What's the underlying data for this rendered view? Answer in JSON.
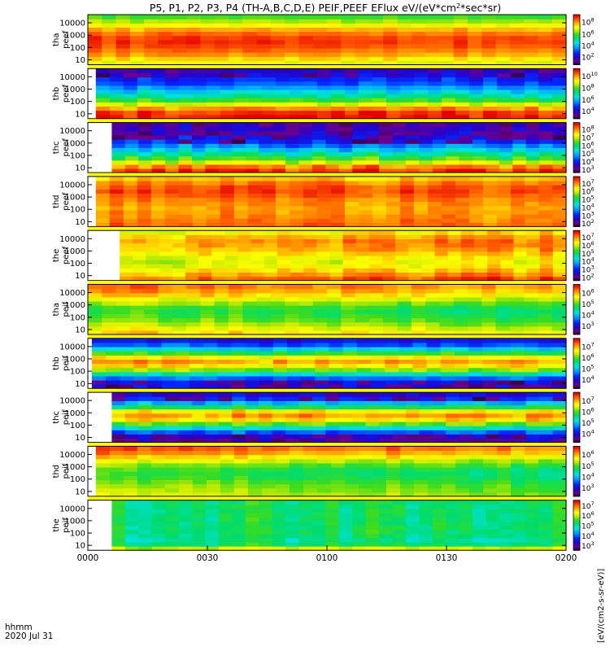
{
  "chart_data": {
    "type": "heatmap",
    "title": "P5, P1, P2, P3, P4 (TH-A,B,C,D,E) PEIF,PEEF EFlux eV/(eV*cm^2*sec*sr)",
    "title_parts": {
      "prefix": "P5, P1, P2, P3, P4 (TH-A,B,C,D,E) PEIF,PEEF EFlux eV/(eV",
      "cm": "cm",
      "sup": "2",
      "sec": "sec",
      "sr": "sr)"
    },
    "xlabel": "hhmm",
    "date_label": "2020 Jul 31",
    "x_ticks": [
      "0000",
      "0030",
      "0100",
      "0130",
      "0200"
    ],
    "x_range_minutes": [
      0,
      120
    ],
    "y_ticks": [
      "10",
      "100",
      "1000",
      "10000"
    ],
    "y_scale": "log",
    "colorbar_title": "[eV/(cm2-s-sr-eV)]",
    "panels": [
      {
        "label": "tha",
        "sublabel": "peef",
        "data_start_min": 0,
        "cbar_exps": [
          "2",
          "4",
          "6",
          "8"
        ],
        "cbar_exp_positions": [
          0.16,
          0.39,
          0.62,
          0.86
        ],
        "energy_profile": [
          0.74,
          0.8,
          0.86,
          0.9,
          0.93,
          0.95,
          0.94,
          0.9,
          0.84,
          0.76,
          0.68,
          0.61
        ],
        "time_trend": 0.0,
        "noise": 0.03,
        "dark_bands": [],
        "ydir": 1
      },
      {
        "label": "thb",
        "sublabel": "peef",
        "data_start_min": 2,
        "cbar_exps": [
          "4",
          "6",
          "8",
          "10"
        ],
        "cbar_exp_positions": [
          0.16,
          0.39,
          0.62,
          0.86
        ],
        "energy_profile": [
          0.97,
          0.95,
          0.86,
          0.72,
          0.6,
          0.5,
          0.42,
          0.34,
          0.26,
          0.22,
          0.16,
          0.13
        ],
        "time_trend": 0.0,
        "noise": 0.05,
        "dark_bands": [
          [
            0.85,
            0.94
          ]
        ],
        "ydir": 1
      },
      {
        "label": "thc",
        "sublabel": "peef",
        "data_start_min": 6,
        "cbar_exps": [
          "3",
          "4",
          "5",
          "6",
          "7",
          "8"
        ],
        "cbar_exp_positions": [
          0.07,
          0.23,
          0.39,
          0.55,
          0.71,
          0.87
        ],
        "energy_profile": [
          0.95,
          0.88,
          0.72,
          0.6,
          0.5,
          0.4,
          0.32,
          0.24,
          0.18,
          0.13,
          0.12,
          0.1
        ],
        "time_trend": 0.0,
        "noise": 0.06,
        "dark_bands": [
          [
            0.6,
            0.75
          ],
          [
            0.8,
            0.88
          ]
        ],
        "ydir": 1
      },
      {
        "label": "thd",
        "sublabel": "peef",
        "data_start_min": 2,
        "cbar_exps": [
          "2",
          "3",
          "4",
          "5",
          "6",
          "7"
        ],
        "cbar_exp_positions": [
          0.07,
          0.23,
          0.39,
          0.55,
          0.71,
          0.87
        ],
        "energy_profile": [
          0.9,
          0.88,
          0.87,
          0.86,
          0.85,
          0.86,
          0.88,
          0.91,
          0.93,
          0.92,
          0.88,
          0.82
        ],
        "time_trend": 0.0,
        "noise": 0.04,
        "dark_bands": [],
        "ydir": 1
      },
      {
        "label": "the",
        "sublabel": "peef",
        "data_start_min": 8,
        "cbar_exps": [
          "2",
          "3",
          "4",
          "5",
          "6",
          "7"
        ],
        "cbar_exp_positions": [
          0.07,
          0.23,
          0.39,
          0.55,
          0.71,
          0.87
        ],
        "energy_profile": [
          0.88,
          0.82,
          0.77,
          0.72,
          0.7,
          0.72,
          0.76,
          0.8,
          0.83,
          0.84,
          0.8,
          0.74
        ],
        "time_trend": 0.06,
        "noise": 0.05,
        "dark_bands": [],
        "ydir": 1
      },
      {
        "label": "tha",
        "sublabel": "peif",
        "data_start_min": 0,
        "cbar_exps": [
          "3",
          "4",
          "5",
          "6"
        ],
        "cbar_exp_positions": [
          0.18,
          0.4,
          0.62,
          0.84
        ],
        "energy_profile": [
          0.82,
          0.77,
          0.72,
          0.68,
          0.64,
          0.62,
          0.64,
          0.7,
          0.77,
          0.84,
          0.89,
          0.92
        ],
        "time_trend": -0.08,
        "noise": 0.04,
        "dark_bands": [],
        "ydir": 1
      },
      {
        "label": "thb",
        "sublabel": "peif",
        "data_start_min": 1,
        "cbar_exps": [
          "4",
          "5",
          "6",
          "7"
        ],
        "cbar_exp_positions": [
          0.18,
          0.4,
          0.62,
          0.84
        ],
        "energy_profile": [
          0.18,
          0.2,
          0.3,
          0.48,
          0.66,
          0.8,
          0.86,
          0.78,
          0.6,
          0.42,
          0.28,
          0.2
        ],
        "time_trend": 0.0,
        "noise": 0.05,
        "dark_bands": [
          [
            0.0,
            0.12
          ]
        ],
        "ydir": 1
      },
      {
        "label": "thc",
        "sublabel": "peif",
        "data_start_min": 6,
        "cbar_exps": [
          "4",
          "5",
          "6",
          "7"
        ],
        "cbar_exp_positions": [
          0.18,
          0.4,
          0.62,
          0.84
        ],
        "energy_profile": [
          0.12,
          0.16,
          0.28,
          0.46,
          0.64,
          0.8,
          0.86,
          0.78,
          0.56,
          0.38,
          0.24,
          0.16
        ],
        "time_trend": 0.0,
        "noise": 0.05,
        "dark_bands": [
          [
            0.0,
            0.1
          ],
          [
            0.86,
            0.95
          ]
        ],
        "ydir": 1
      },
      {
        "label": "thd",
        "sublabel": "peif",
        "data_start_min": 2,
        "cbar_exps": [
          "3",
          "4",
          "5",
          "6"
        ],
        "cbar_exp_positions": [
          0.18,
          0.4,
          0.62,
          0.84
        ],
        "energy_profile": [
          0.72,
          0.7,
          0.68,
          0.65,
          0.62,
          0.6,
          0.62,
          0.67,
          0.74,
          0.82,
          0.89,
          0.94
        ],
        "time_trend": -0.06,
        "noise": 0.04,
        "dark_bands": [],
        "ydir": 1
      },
      {
        "label": "the",
        "sublabel": "peif",
        "data_start_min": 6,
        "cbar_exps": [
          "3",
          "4",
          "5",
          "6",
          "7"
        ],
        "cbar_exp_positions": [
          0.1,
          0.3,
          0.5,
          0.7,
          0.9
        ],
        "energy_profile": [
          0.72,
          0.56,
          0.52,
          0.54,
          0.55,
          0.55,
          0.55,
          0.55,
          0.55,
          0.55,
          0.55,
          0.55
        ],
        "time_trend": 0.0,
        "noise": 0.06,
        "dark_bands": [],
        "ydir": 1
      }
    ]
  }
}
